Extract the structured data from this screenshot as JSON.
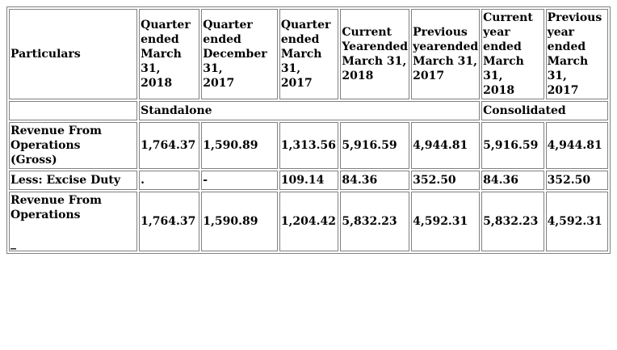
{
  "table": {
    "header": {
      "particulars": "Particulars",
      "columns": [
        [
          "Quarter",
          "ended",
          "March",
          "31,",
          "2018"
        ],
        [
          "Quarter",
          "ended",
          "December",
          "31,",
          "2017"
        ],
        [
          "Quarter",
          "ended",
          "March",
          "31,",
          "2017"
        ],
        [
          "Current",
          "Yearended",
          "March 31,",
          "2018"
        ],
        [
          "Previous",
          "yearended",
          "March 31,",
          "2017"
        ],
        [
          "Current",
          "year",
          "ended",
          "March 31,",
          "2018"
        ],
        [
          "Previous",
          "year",
          "ended",
          "March 31,",
          "2017"
        ]
      ]
    },
    "segments": {
      "standalone": "Standalone",
      "consolidated": "Consolidated"
    },
    "rows": {
      "gross": {
        "label": [
          "Revenue From",
          "Operations",
          "(Gross)"
        ],
        "values": [
          "1,764.37",
          "1,590.89",
          "1,313.56",
          "5,916.59",
          "4,944.81",
          "5,916.59",
          "4,944.81"
        ]
      },
      "excise": {
        "label": "Less: Excise Duty",
        "values": [
          ".",
          "-",
          "109.14",
          "84.36",
          "352.50",
          "84.36",
          "352.50"
        ]
      },
      "net": {
        "label": [
          "Revenue From",
          "Operations"
        ],
        "tail": "_",
        "values": [
          "1,764.37",
          "1,590.89",
          "1,204.42",
          "5,832.23",
          "4,592.31",
          "5,832.23",
          "4,592.31"
        ]
      }
    }
  }
}
